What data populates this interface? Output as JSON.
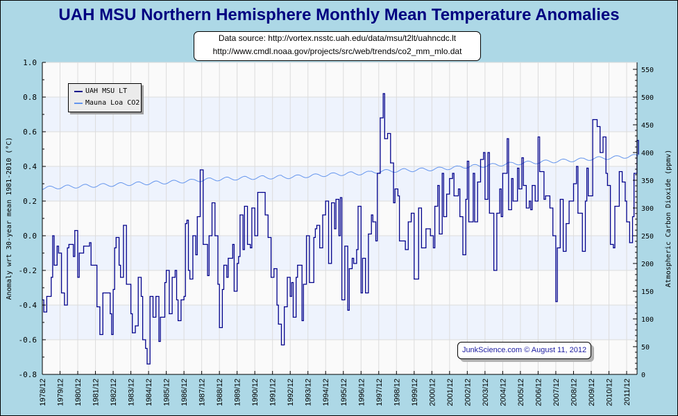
{
  "title": "UAH MSU Northern Hemisphere Monthly Mean Temperature Anomalies",
  "source": {
    "line1": "Data source: http://vortex.nsstc.uah.edu/data/msu/t2lt/uahncdc.lt",
    "line2": "http://www.cmdl.noaa.gov/projects/src/web/trends/co2_mm_mlo.dat"
  },
  "credit": "JunkScience.com © August 11, 2012",
  "legend": [
    {
      "label": "UAH MSU LT",
      "color": "#00008b"
    },
    {
      "label": "Mauna Loa CO2",
      "color": "#6495ed"
    }
  ],
  "chart_data": {
    "type": "line",
    "title": "UAH MSU Northern Hemisphere Monthly Mean Temperature Anomalies",
    "ylabel": "Anomaly wrt 30-year mean 1981-2010 (°C)",
    "y2label": "Atmospheric Carbon Dioxide (ppmv)",
    "ylim": [
      -0.8,
      1.0
    ],
    "y_ticks": [
      "-0.8",
      "-0.6",
      "-0.4",
      "-0.2",
      "0.0",
      "0.2",
      "0.4",
      "0.6",
      "0.8",
      "1.0"
    ],
    "y2lim": [
      0,
      550
    ],
    "y2_ticks": [
      "0",
      "50",
      "100",
      "150",
      "200",
      "250",
      "300",
      "350",
      "400",
      "450",
      "500",
      "550"
    ],
    "x_ticks": [
      "1978/12",
      "1979/12",
      "1980/12",
      "1981/12",
      "1982/12",
      "1983/12",
      "1984/12",
      "1985/12",
      "1986/12",
      "1987/12",
      "1988/12",
      "1989/12",
      "1990/12",
      "1991/12",
      "1992/12",
      "1993/12",
      "1994/12",
      "1995/12",
      "1996/12",
      "1997/12",
      "1998/12",
      "1999/12",
      "2000/12",
      "2001/12",
      "2002/12",
      "2003/12",
      "2004/12",
      "2005/12",
      "2006/12",
      "2007/12",
      "2008/12",
      "2009/12",
      "2010/12",
      "2011/12"
    ],
    "x_unit": "months since 1978/12",
    "grid": true,
    "legend_position": "top-left",
    "series": [
      {
        "name": "UAH MSU LT",
        "axis": "left",
        "color": "#00008b",
        "points": [
          [
            0,
            -0.37
          ],
          [
            1,
            -0.44
          ],
          [
            3,
            -0.35
          ],
          [
            6,
            -0.24
          ],
          [
            7,
            0.0
          ],
          [
            8,
            -0.17
          ],
          [
            10,
            -0.06
          ],
          [
            11,
            -0.1
          ],
          [
            13,
            -0.33
          ],
          [
            15,
            -0.4
          ],
          [
            17,
            -0.07
          ],
          [
            18,
            -0.05
          ],
          [
            21,
            -0.12
          ],
          [
            22,
            0.03
          ],
          [
            24,
            -0.24
          ],
          [
            25,
            -0.1
          ],
          [
            28,
            -0.06
          ],
          [
            32,
            -0.04
          ],
          [
            33,
            -0.17
          ],
          [
            36,
            -0.17
          ],
          [
            37,
            -0.41
          ],
          [
            39,
            -0.57
          ],
          [
            41,
            -0.33
          ],
          [
            43,
            -0.33
          ],
          [
            46,
            -0.45
          ],
          [
            47,
            -0.57
          ],
          [
            48,
            -0.31
          ],
          [
            49,
            -0.07
          ],
          [
            50,
            -0.01
          ],
          [
            52,
            -0.17
          ],
          [
            53,
            -0.24
          ],
          [
            55,
            0.06
          ],
          [
            57,
            -0.28
          ],
          [
            60,
            -0.45
          ],
          [
            61,
            -0.56
          ],
          [
            63,
            -0.52
          ],
          [
            65,
            -0.24
          ],
          [
            67,
            -0.35
          ],
          [
            68,
            -0.6
          ],
          [
            70,
            -0.65
          ],
          [
            71,
            -0.74
          ],
          [
            73,
            -0.35
          ],
          [
            75,
            -0.47
          ],
          [
            77,
            -0.35
          ],
          [
            79,
            -0.61
          ],
          [
            80,
            -0.47
          ],
          [
            83,
            -0.27
          ],
          [
            84,
            -0.2
          ],
          [
            86,
            -0.45
          ],
          [
            88,
            -0.24
          ],
          [
            90,
            -0.2
          ],
          [
            91,
            -0.37
          ],
          [
            92,
            -0.49
          ],
          [
            94,
            -0.37
          ],
          [
            96,
            -0.35
          ],
          [
            97,
            0.07
          ],
          [
            98,
            0.09
          ],
          [
            99,
            -0.2
          ],
          [
            100,
            -0.25
          ],
          [
            102,
            0.0
          ],
          [
            104,
            -0.11
          ],
          [
            105,
            0.11
          ],
          [
            107,
            0.38
          ],
          [
            109,
            -0.05
          ],
          [
            112,
            -0.23
          ],
          [
            113,
            0.0
          ],
          [
            115,
            0.19
          ],
          [
            117,
            0.0
          ],
          [
            119,
            -0.28
          ],
          [
            120,
            -0.53
          ],
          [
            122,
            -0.31
          ],
          [
            123,
            -0.17
          ],
          [
            125,
            -0.24
          ],
          [
            126,
            -0.13
          ],
          [
            129,
            -0.05
          ],
          [
            130,
            -0.32
          ],
          [
            132,
            -0.16
          ],
          [
            133,
            -0.12
          ],
          [
            134,
            0.12
          ],
          [
            136,
            -0.08
          ],
          [
            137,
            0.17
          ],
          [
            139,
            -0.05
          ],
          [
            141,
            -0.07
          ],
          [
            142,
            0.16
          ],
          [
            144,
            0.0
          ],
          [
            146,
            0.25
          ],
          [
            149,
            0.25
          ],
          [
            151,
            0.12
          ],
          [
            153,
            -0.01
          ],
          [
            155,
            -0.24
          ],
          [
            157,
            -0.19
          ],
          [
            159,
            -0.4
          ],
          [
            160,
            -0.51
          ],
          [
            162,
            -0.63
          ],
          [
            164,
            -0.41
          ],
          [
            166,
            -0.24
          ],
          [
            168,
            -0.35
          ],
          [
            169,
            -0.27
          ],
          [
            170,
            -0.47
          ],
          [
            172,
            -0.24
          ],
          [
            173,
            -0.17
          ],
          [
            176,
            -0.49
          ],
          [
            177,
            -0.28
          ],
          [
            179,
            0.0
          ],
          [
            181,
            -0.27
          ],
          [
            184,
            -0.01
          ],
          [
            185,
            0.04
          ],
          [
            186,
            0.06
          ],
          [
            188,
            -0.07
          ],
          [
            190,
            0.12
          ],
          [
            192,
            0.2
          ],
          [
            194,
            -0.16
          ],
          [
            196,
            0.19
          ],
          [
            198,
            0.04
          ],
          [
            199,
            0.21
          ],
          [
            201,
            0.0
          ],
          [
            202,
            0.22
          ],
          [
            203,
            -0.37
          ],
          [
            205,
            -0.06
          ],
          [
            207,
            -0.43
          ],
          [
            208,
            -0.19
          ],
          [
            210,
            -0.13
          ],
          [
            211,
            -0.16
          ],
          [
            213,
            -0.08
          ],
          [
            214,
            0.17
          ],
          [
            216,
            -0.33
          ],
          [
            217,
            -0.13
          ],
          [
            219,
            -0.33
          ],
          [
            221,
            0.01
          ],
          [
            223,
            0.12
          ],
          [
            224,
            0.08
          ],
          [
            226,
            -0.03
          ],
          [
            227,
            0.36
          ],
          [
            229,
            0.68
          ],
          [
            231,
            0.82
          ],
          [
            232,
            0.56
          ],
          [
            234,
            0.59
          ],
          [
            236,
            0.42
          ],
          [
            238,
            0.19
          ],
          [
            239,
            0.27
          ],
          [
            241,
            0.23
          ],
          [
            242,
            -0.03
          ],
          [
            245,
            -0.03
          ],
          [
            246,
            -0.08
          ],
          [
            248,
            0.08
          ],
          [
            250,
            0.13
          ],
          [
            252,
            -0.25
          ],
          [
            255,
            0.16
          ],
          [
            257,
            -0.07
          ],
          [
            260,
            0.04
          ],
          [
            263,
            0.0
          ],
          [
            265,
            -0.07
          ],
          [
            266,
            0.17
          ],
          [
            268,
            0.29
          ],
          [
            269,
            0.01
          ],
          [
            271,
            0.36
          ],
          [
            272,
            0.11
          ],
          [
            274,
            0.24
          ],
          [
            276,
            0.33
          ],
          [
            278,
            0.36
          ],
          [
            279,
            0.23
          ],
          [
            282,
            0.27
          ],
          [
            283,
            0.11
          ],
          [
            285,
            -0.11
          ],
          [
            287,
            0.21
          ],
          [
            288,
            0.43
          ],
          [
            289,
            0.08
          ],
          [
            292,
            0.36
          ],
          [
            293,
            0.08
          ],
          [
            295,
            0.31
          ],
          [
            297,
            0.44
          ],
          [
            299,
            0.48
          ],
          [
            300,
            0.21
          ],
          [
            302,
            0.48
          ],
          [
            303,
            0.13
          ],
          [
            306,
            -0.2
          ],
          [
            308,
            0.13
          ],
          [
            310,
            0.27
          ],
          [
            311,
            0.11
          ],
          [
            312,
            0.36
          ],
          [
            315,
            0.56
          ],
          [
            316,
            0.15
          ],
          [
            318,
            0.33
          ],
          [
            319,
            0.2
          ],
          [
            322,
            0.39
          ],
          [
            323,
            0.27
          ],
          [
            325,
            0.45
          ],
          [
            326,
            0.29
          ],
          [
            328,
            0.16
          ],
          [
            330,
            0.2
          ],
          [
            331,
            0.15
          ],
          [
            332,
            0.29
          ],
          [
            334,
            0.2
          ],
          [
            336,
            0.57
          ],
          [
            337,
            0.37
          ],
          [
            340,
            0.21
          ],
          [
            341,
            0.23
          ],
          [
            344,
            0.16
          ],
          [
            346,
            0.0
          ],
          [
            348,
            -0.38
          ],
          [
            349,
            -0.07
          ],
          [
            351,
            0.21
          ],
          [
            353,
            -0.09
          ],
          [
            355,
            0.07
          ],
          [
            357,
            0.2
          ],
          [
            360,
            0.3
          ],
          [
            362,
            0.4
          ],
          [
            363,
            0.13
          ],
          [
            366,
            -0.09
          ],
          [
            368,
            0.2
          ],
          [
            369,
            0.39
          ],
          [
            370,
            0.23
          ],
          [
            372,
            0.23
          ],
          [
            373,
            0.67
          ],
          [
            374,
            0.67
          ],
          [
            376,
            0.63
          ],
          [
            378,
            0.48
          ],
          [
            380,
            0.57
          ],
          [
            382,
            0.36
          ],
          [
            383,
            0.29
          ],
          [
            385,
            -0.05
          ],
          [
            387,
            -0.07
          ],
          [
            388,
            0.17
          ],
          [
            391,
            0.37
          ],
          [
            393,
            0.31
          ],
          [
            395,
            0.2
          ],
          [
            396,
            0.08
          ],
          [
            398,
            -0.04
          ],
          [
            400,
            0.11
          ],
          [
            401,
            0.36
          ],
          [
            403,
            0.55
          ],
          [
            404,
            0.47
          ]
        ]
      },
      {
        "name": "Mauna Loa CO2",
        "axis": "right",
        "color": "#6495ed",
        "annual_mean_years": [
          1979,
          1980,
          1981,
          1982,
          1983,
          1984,
          1985,
          1986,
          1987,
          1988,
          1989,
          1990,
          1991,
          1992,
          1993,
          1994,
          1995,
          1996,
          1997,
          1998,
          1999,
          2000,
          2001,
          2002,
          2003,
          2004,
          2005,
          2006,
          2007,
          2008,
          2009,
          2010,
          2011,
          2012
        ],
        "annual_mean_ppmv": [
          336.8,
          338.7,
          340.1,
          341.4,
          343.0,
          344.6,
          346.0,
          347.4,
          349.2,
          351.6,
          353.1,
          354.4,
          355.6,
          356.4,
          357.1,
          358.8,
          360.8,
          362.6,
          363.7,
          366.7,
          368.4,
          369.6,
          371.1,
          373.2,
          375.8,
          377.5,
          379.8,
          381.9,
          383.8,
          385.6,
          387.4,
          389.9,
          391.6,
          393.8
        ],
        "seasonal_amplitude_ppmv": 3
      }
    ]
  }
}
